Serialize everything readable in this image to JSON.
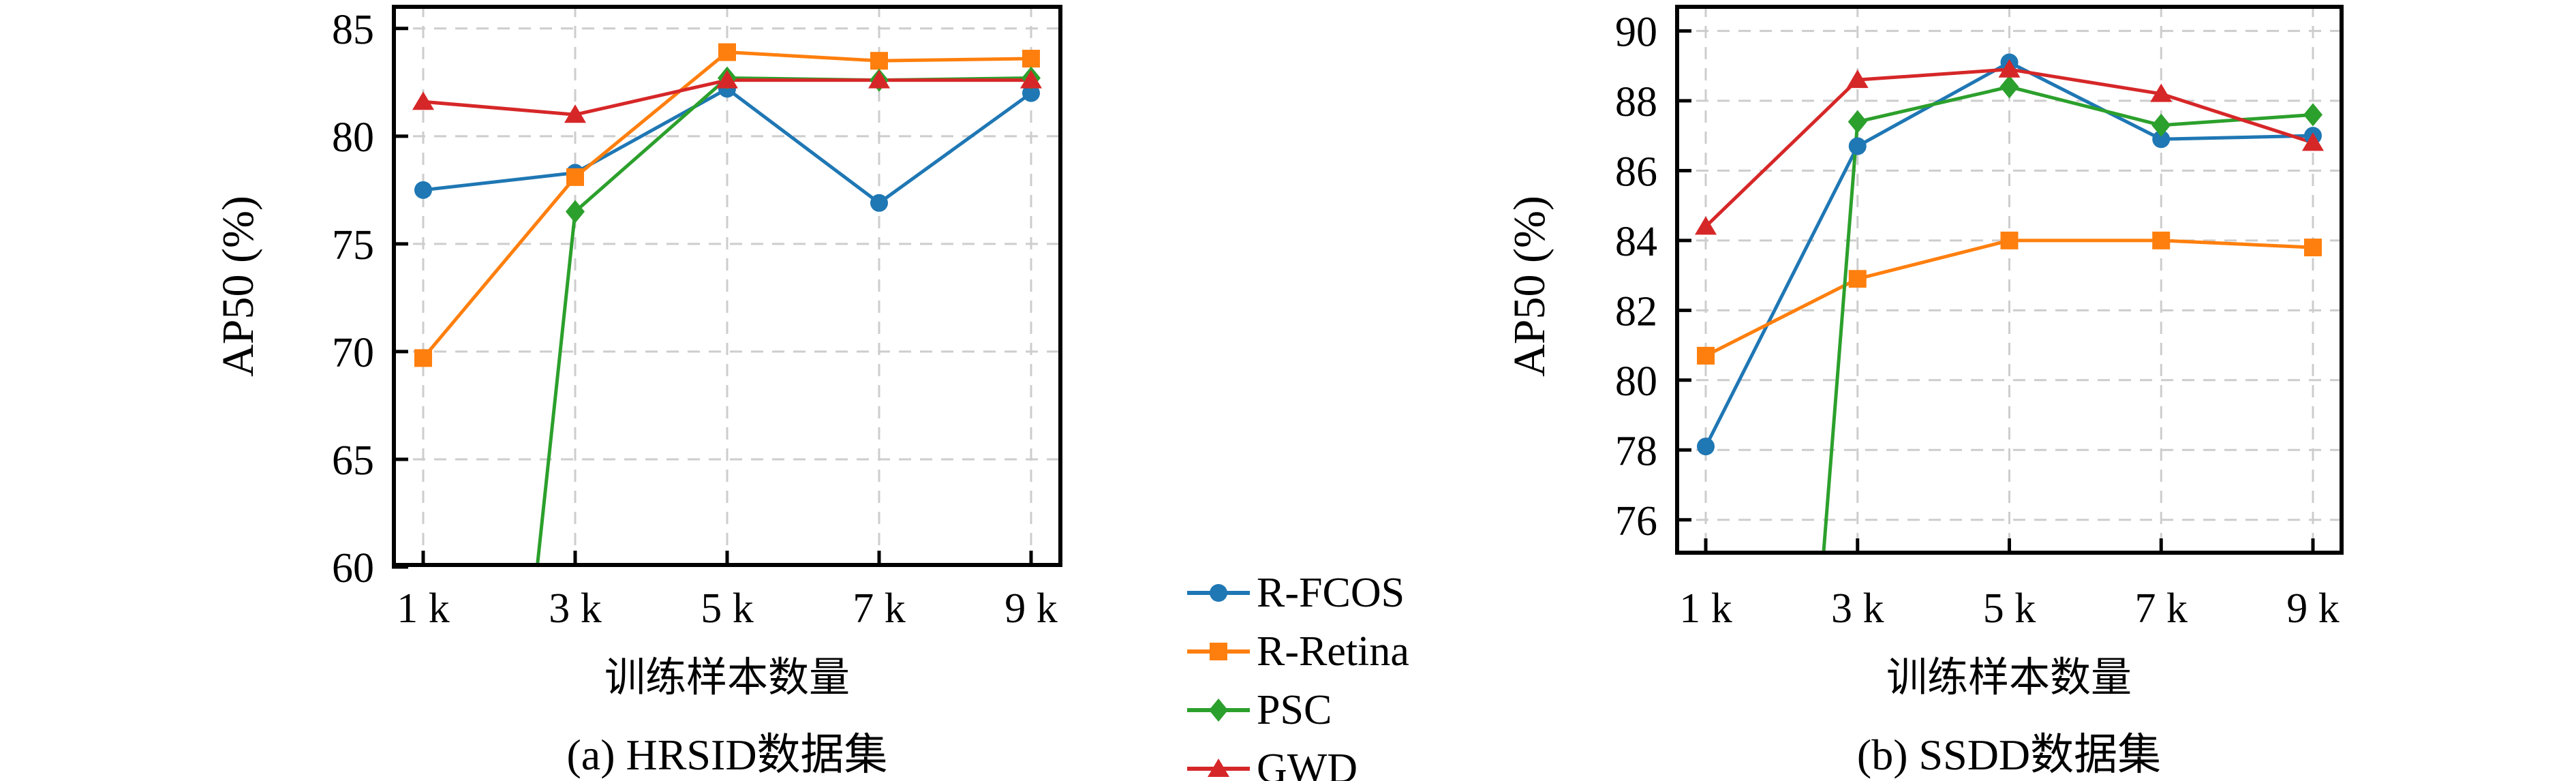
{
  "figure_type": "two-panel line chart comparison",
  "chart_data": [
    {
      "type": "line",
      "caption": "(a) HRSID数据集",
      "xlabel": "训练样本数量",
      "ylabel": "AP50 (%)",
      "categories": [
        "1 k",
        "3 k",
        "5 k",
        "7 k",
        "9 k"
      ],
      "x_values_k": [
        1,
        3,
        5,
        7,
        9
      ],
      "ylim": [
        60,
        86.1
      ],
      "yticks": [
        60,
        65,
        70,
        75,
        80,
        85
      ],
      "grid": "dashed both axes, light gray",
      "legend_position": "shared legend right of panel",
      "series": [
        {
          "name": "R-FCOS",
          "color": "#1f77b4",
          "marker": "circle",
          "values": [
            77.5,
            78.3,
            82.2,
            76.9,
            82.0
          ]
        },
        {
          "name": "R-Retina",
          "color": "#ff7f0e",
          "marker": "square",
          "values": [
            69.7,
            78.1,
            83.9,
            83.5,
            83.6
          ]
        },
        {
          "name": "PSC",
          "color": "#2ca02c",
          "marker": "diamond",
          "values": [
            null,
            76.5,
            82.7,
            82.6,
            82.7
          ],
          "line_enters_from_below_axis_at_k": 2.5
        },
        {
          "name": "GWD",
          "color": "#d62728",
          "marker": "triangle",
          "values": [
            81.6,
            81.0,
            82.6,
            82.6,
            82.6
          ]
        }
      ]
    },
    {
      "type": "line",
      "caption": "(b) SSDD数据集",
      "xlabel": "训练样本数量",
      "ylabel": "AP50 (%)",
      "categories": [
        "1 k",
        "3 k",
        "5 k",
        "7 k",
        "9 k"
      ],
      "x_values_k": [
        1,
        3,
        5,
        7,
        9
      ],
      "ylim": [
        75,
        90.75
      ],
      "yticks": [
        76,
        78,
        80,
        82,
        84,
        86,
        88,
        90
      ],
      "grid": "dashed both axes, light gray",
      "legend_position": "shared legend left of panel",
      "series": [
        {
          "name": "R-FCOS",
          "color": "#1f77b4",
          "marker": "circle",
          "values": [
            78.1,
            86.7,
            89.1,
            86.9,
            87.0
          ]
        },
        {
          "name": "R-Retina",
          "color": "#ff7f0e",
          "marker": "square",
          "values": [
            80.7,
            82.9,
            84.0,
            84.0,
            83.8
          ]
        },
        {
          "name": "PSC",
          "color": "#2ca02c",
          "marker": "diamond",
          "values": [
            null,
            87.4,
            88.4,
            87.3,
            87.6
          ],
          "line_enters_from_below_axis_at_k": 2.55
        },
        {
          "name": "GWD",
          "color": "#d62728",
          "marker": "triangle",
          "values": [
            84.4,
            88.6,
            88.9,
            88.2,
            86.8
          ]
        }
      ]
    }
  ],
  "legend": {
    "items": [
      {
        "label": "R-FCOS",
        "color": "#1f77b4",
        "marker": "circle"
      },
      {
        "label": "R-Retina",
        "color": "#ff7f0e",
        "marker": "square"
      },
      {
        "label": "PSC",
        "color": "#2ca02c",
        "marker": "diamond"
      },
      {
        "label": "GWD",
        "color": "#d62728",
        "marker": "triangle"
      }
    ]
  },
  "style_colors": {
    "grid": "#cdcdcd",
    "axis_border": "#000000",
    "background": "#ffffff"
  }
}
